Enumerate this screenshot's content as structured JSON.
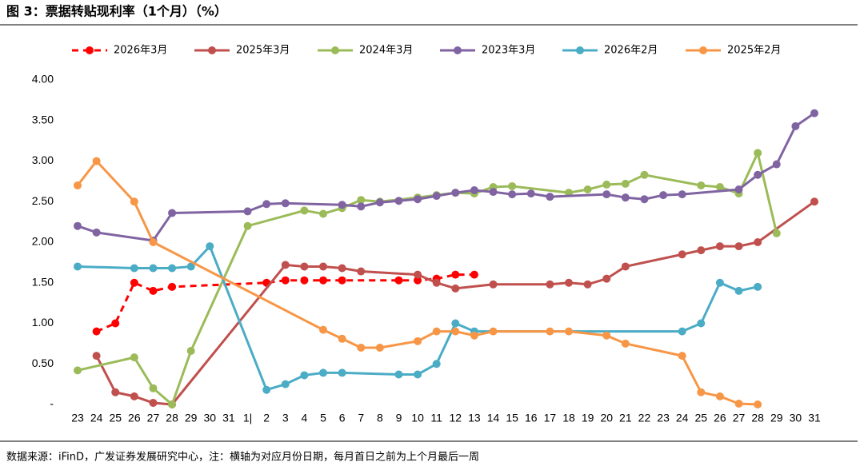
{
  "chart_data": {
    "type": "line",
    "title": "图 3：票据转贴现利率（1个月）（%）",
    "note": "数据来源：iFinD，广发证券发展研究中心，注：横轴为对应月份日期，每月首日之前为上个月最后一周",
    "categories": [
      "23",
      "24",
      "25",
      "26",
      "27",
      "28",
      "29",
      "30",
      "31",
      "1|",
      "2",
      "3",
      "4",
      "5",
      "6",
      "7",
      "8",
      "9",
      "10",
      "11",
      "12",
      "13",
      "14",
      "15",
      "16",
      "17",
      "18",
      "19",
      "20",
      "21",
      "22",
      "23",
      "24",
      "25",
      "26",
      "27",
      "28",
      "29",
      "30",
      "31"
    ],
    "ylim": [
      0,
      4
    ],
    "yticks": [
      {
        "value": 0,
        "label": "-"
      },
      {
        "value": 0.5,
        "label": "0.50"
      },
      {
        "value": 1,
        "label": "1.00"
      },
      {
        "value": 1.5,
        "label": "1.50"
      },
      {
        "value": 2,
        "label": "2.00"
      },
      {
        "value": 2.5,
        "label": "2.50"
      },
      {
        "value": 3,
        "label": "3.00"
      },
      {
        "value": 3.5,
        "label": "3.50"
      },
      {
        "value": 4,
        "label": "4.00"
      }
    ],
    "span_gaps": true,
    "legend": "top",
    "series": [
      {
        "name": "2026年3月",
        "color": "#ff0000",
        "dashed": true,
        "values": [
          null,
          0.9,
          1.0,
          1.5,
          1.4,
          1.45,
          null,
          null,
          null,
          null,
          1.5,
          1.53,
          1.53,
          1.53,
          1.53,
          null,
          null,
          1.53,
          1.53,
          1.55,
          1.6,
          1.6,
          null,
          null,
          null,
          null,
          null,
          null,
          null,
          null,
          null,
          null,
          null,
          null,
          null,
          null,
          null,
          null,
          null,
          null
        ]
      },
      {
        "name": "2025年3月",
        "color": "#c0504d",
        "values": [
          null,
          0.6,
          0.15,
          0.1,
          0.02,
          0,
          null,
          null,
          null,
          null,
          null,
          1.72,
          1.7,
          1.7,
          1.68,
          1.64,
          null,
          null,
          1.6,
          1.5,
          1.43,
          null,
          1.48,
          null,
          null,
          1.48,
          1.5,
          1.48,
          1.55,
          1.7,
          null,
          null,
          1.85,
          1.9,
          1.95,
          1.95,
          2.0,
          null,
          null,
          2.5
        ]
      },
      {
        "name": "2024年3月",
        "color": "#9bbb59",
        "values": [
          0.42,
          null,
          null,
          0.58,
          0.2,
          0,
          0.66,
          null,
          null,
          2.2,
          null,
          null,
          2.39,
          2.35,
          2.42,
          2.52,
          2.5,
          null,
          2.55,
          2.58,
          2.61,
          2.6,
          2.68,
          2.69,
          null,
          null,
          2.61,
          2.65,
          2.71,
          2.72,
          2.83,
          null,
          null,
          2.7,
          2.68,
          2.6,
          3.1,
          2.11,
          null,
          null
        ]
      },
      {
        "name": "2023年3月",
        "color": "#8064a2",
        "values": [
          2.2,
          2.12,
          null,
          null,
          2.02,
          2.36,
          null,
          null,
          null,
          2.38,
          2.47,
          2.48,
          null,
          null,
          2.46,
          2.44,
          2.49,
          2.51,
          2.53,
          2.57,
          2.61,
          2.64,
          2.62,
          2.59,
          2.6,
          2.56,
          null,
          null,
          2.59,
          2.55,
          2.53,
          2.58,
          2.59,
          null,
          null,
          2.65,
          2.83,
          2.96,
          3.43,
          3.59
        ]
      },
      {
        "name": "2026年2月",
        "color": "#4bacc6",
        "values": [
          1.7,
          null,
          null,
          1.68,
          1.68,
          1.68,
          1.7,
          1.95,
          null,
          null,
          0.18,
          0.25,
          0.36,
          0.39,
          0.39,
          null,
          null,
          0.37,
          0.37,
          0.5,
          1.0,
          0.9,
          null,
          null,
          null,
          null,
          null,
          null,
          null,
          null,
          null,
          null,
          0.9,
          1.0,
          1.5,
          1.4,
          1.45,
          null,
          null,
          null
        ]
      },
      {
        "name": "2025年2月",
        "color": "#f79646",
        "values": [
          2.7,
          3.0,
          null,
          2.5,
          2.0,
          null,
          null,
          null,
          null,
          null,
          null,
          null,
          null,
          0.92,
          0.81,
          0.7,
          0.7,
          null,
          0.78,
          0.9,
          0.9,
          0.85,
          0.9,
          null,
          null,
          0.9,
          0.9,
          null,
          0.85,
          0.75,
          null,
          null,
          0.6,
          0.15,
          0.1,
          0.01,
          0,
          null,
          null,
          null
        ]
      }
    ]
  }
}
